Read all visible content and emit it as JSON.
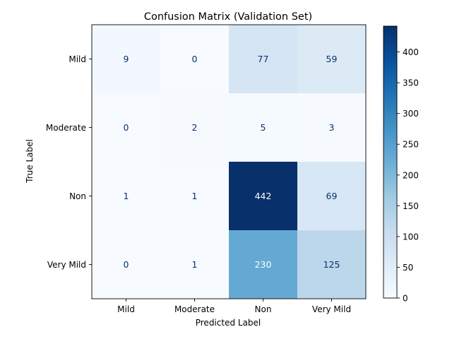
{
  "chart_data": {
    "type": "heatmap",
    "title": "Confusion Matrix (Validation Set)",
    "xlabel": "Predicted Label",
    "ylabel": "True Label",
    "x_categories": [
      "Mild",
      "Moderate",
      "Non",
      "Very Mild"
    ],
    "y_categories": [
      "Mild",
      "Moderate",
      "Non",
      "Very Mild"
    ],
    "values": [
      [
        9,
        0,
        77,
        59
      ],
      [
        0,
        2,
        5,
        3
      ],
      [
        1,
        1,
        442,
        69
      ],
      [
        0,
        1,
        230,
        125
      ]
    ],
    "colormap": "Blues",
    "colorbar": {
      "range": [
        0,
        442
      ],
      "ticks": [
        0,
        50,
        100,
        150,
        200,
        250,
        300,
        350,
        400
      ]
    },
    "grid": false
  }
}
